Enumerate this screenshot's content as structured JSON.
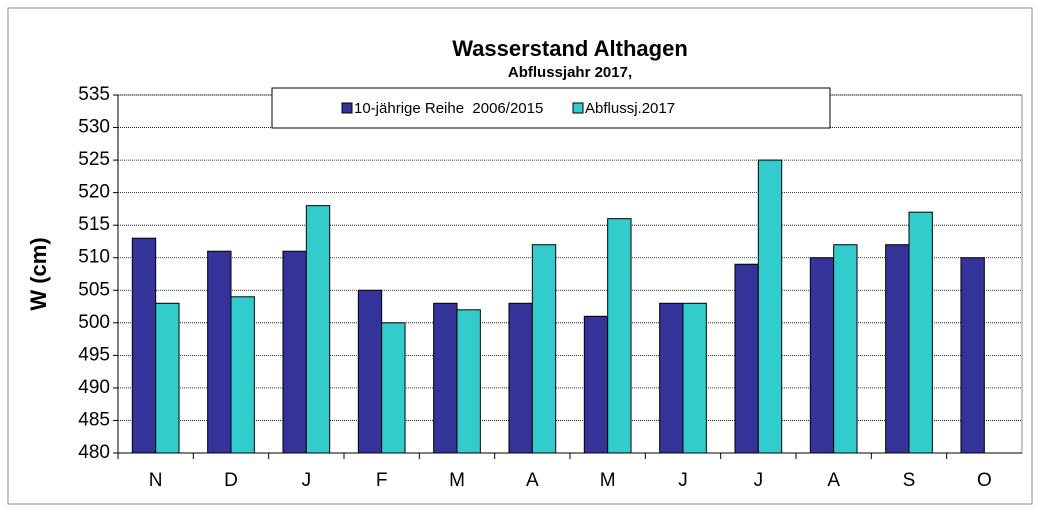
{
  "chart_data": {
    "type": "bar",
    "title": "Wasserstand Althagen",
    "subtitle": "Abflussjahr 2017,",
    "y_label": "W (cm)",
    "categories": [
      "N",
      "D",
      "J",
      "F",
      "M",
      "A",
      "M",
      "J",
      "J",
      "A",
      "S",
      "O"
    ],
    "series": [
      {
        "name": "10-jährige Reihe  2006/2015",
        "color": "#333399",
        "values": [
          513,
          511,
          511,
          505,
          503,
          503,
          501,
          503,
          509,
          510,
          512,
          510
        ]
      },
      {
        "name": "Abflussj.2017",
        "color": "#33cccc",
        "values": [
          503,
          504,
          518,
          500,
          502,
          512,
          516,
          503,
          525,
          512,
          517,
          null
        ]
      }
    ],
    "ylim": [
      480,
      535
    ],
    "yticks": [
      480,
      485,
      490,
      495,
      500,
      505,
      510,
      515,
      520,
      525,
      530,
      535
    ],
    "grid": true
  }
}
